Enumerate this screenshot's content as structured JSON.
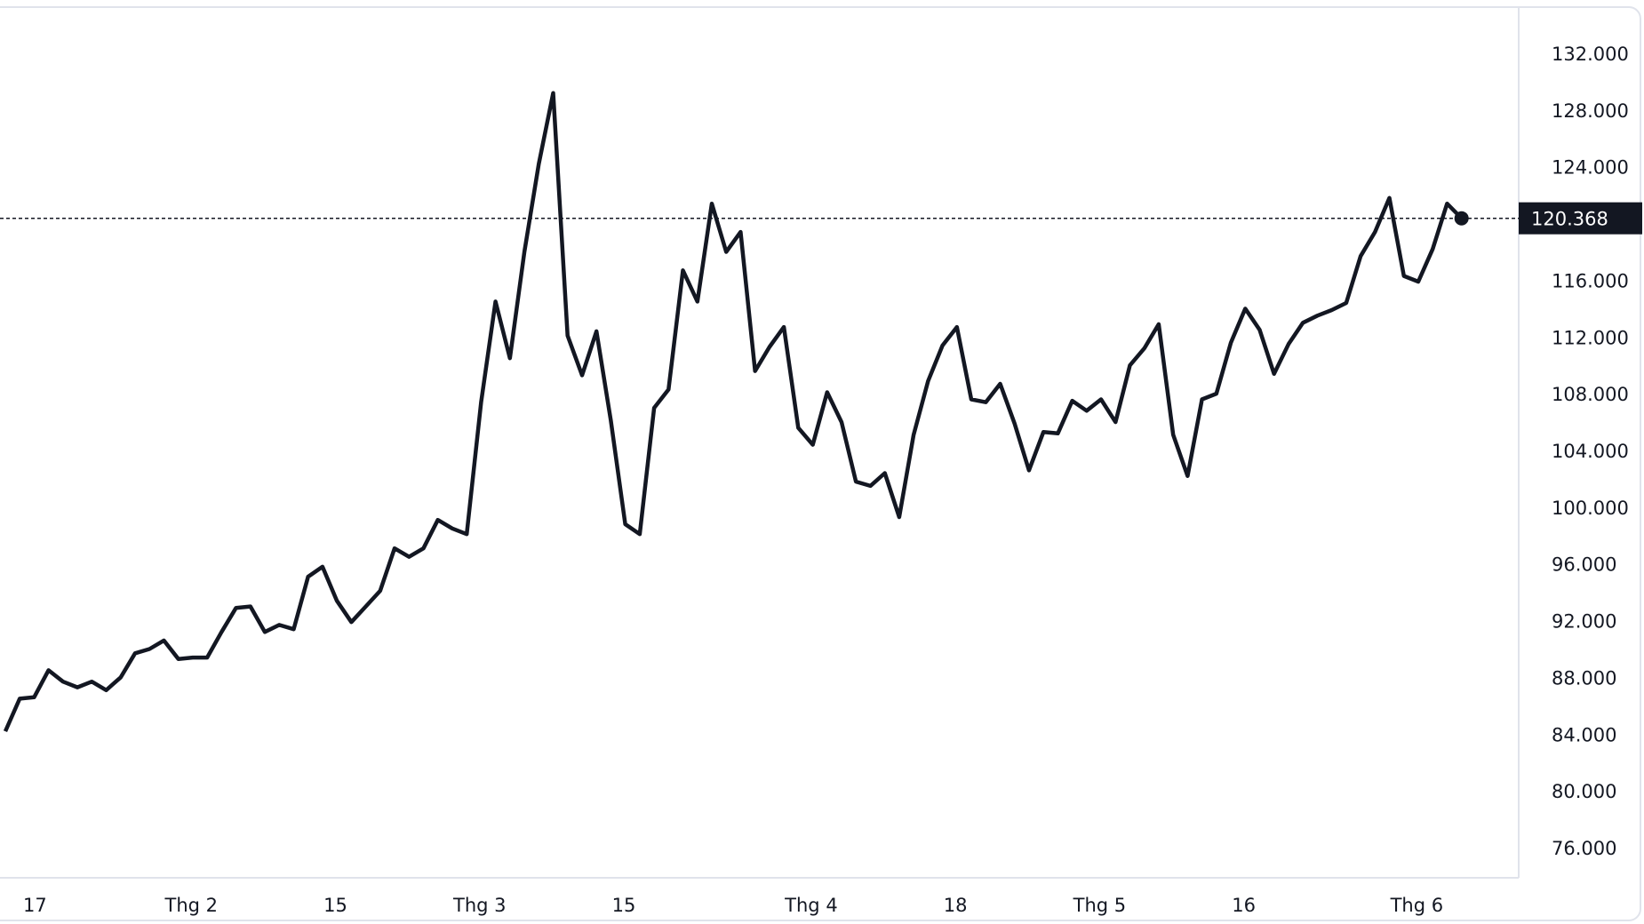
{
  "chart_data": {
    "type": "line",
    "title": "",
    "xlabel": "",
    "ylabel": "",
    "ylim": [
      74000,
      134000
    ],
    "grid": false,
    "line_color": "#131722",
    "y_ticks": [
      "132.000",
      "128.000",
      "124.000",
      "120.000",
      "116.000",
      "112.000",
      "108.000",
      "104.000",
      "100.000",
      "96.000",
      "92.000",
      "88.000",
      "84.000",
      "80.000",
      "76.000"
    ],
    "y_tick_values": [
      132000,
      128000,
      124000,
      120000,
      116000,
      112000,
      108000,
      104000,
      100000,
      96000,
      92000,
      88000,
      84000,
      80000,
      76000
    ],
    "x_ticks": [
      "17",
      "Thg 2",
      "15",
      "Thg 3",
      "15",
      "Thg 4",
      "18",
      "Thg 5",
      "16",
      "Thg 6"
    ],
    "last_value_label": "120.368",
    "last_value": 120368,
    "series": [
      {
        "values": [
          84200,
          86500,
          86600,
          88500,
          87700,
          87300,
          87700,
          87100,
          88000,
          89700,
          90000,
          90600,
          89300,
          89400,
          89400,
          91200,
          92900,
          93000,
          91200,
          91700,
          91400,
          95100,
          95800,
          93400,
          91900,
          93000,
          94100,
          97100,
          96500,
          97100,
          99100,
          98500,
          98100,
          107400,
          114500,
          110500,
          118000,
          124200,
          129200,
          112100,
          109300,
          112400,
          106100,
          98800,
          98100,
          107000,
          108300,
          116700,
          114500,
          121400,
          118000,
          119400,
          109600,
          111300,
          112700,
          105600,
          104400,
          108100,
          106000,
          101800,
          101500,
          102400,
          99300,
          105100,
          108900,
          111400,
          112700,
          107600,
          107400,
          108700,
          105900,
          102600,
          105300,
          105200,
          107500,
          106800,
          107600,
          106000,
          110000,
          111200,
          112900,
          105100,
          102200,
          107600,
          108000,
          111600,
          114000,
          112500,
          109400,
          111500,
          113000,
          113500,
          113900,
          114400,
          117700,
          119400,
          121800,
          116300,
          115900,
          118200,
          121400,
          120368
        ]
      }
    ]
  }
}
